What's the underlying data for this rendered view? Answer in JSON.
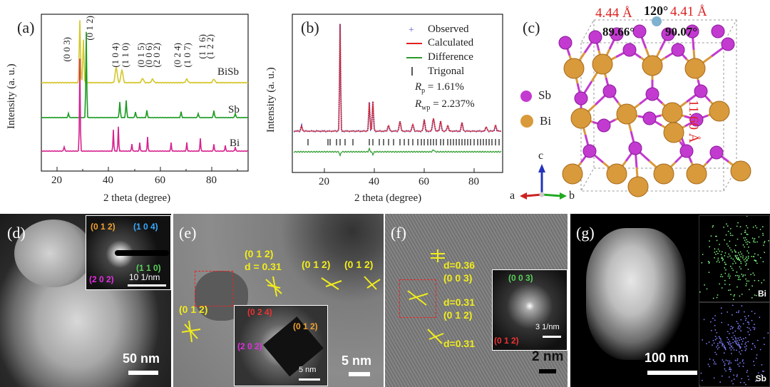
{
  "panel_a": {
    "label": "(a)",
    "ylabel": "Intensity (a. u.)",
    "xlabel": "2 theta (degree)",
    "xticks": [
      "20",
      "40",
      "60",
      "80"
    ],
    "series_labels": [
      "BiSb",
      "Sb",
      "Bi"
    ],
    "millers": [
      "(0 0 3)",
      "(0 1 2)",
      "(1 0 4)",
      "(1 1 0)",
      "(0 1 5)",
      "(0 0 6)",
      "(2 0 2)",
      "(0 2 4)",
      "(1 0 7)",
      "(1 1 6)",
      "(1 2 2)"
    ],
    "colors": {
      "BiSb": "#d4c62a",
      "Sb": "#1c9b22",
      "Bi": "#d6228f"
    }
  },
  "panel_b": {
    "label": "(b)",
    "ylabel": "Intensity (a. u.)",
    "xlabel": "2 theta (degree)",
    "xticks": [
      "20",
      "40",
      "60",
      "80"
    ],
    "legend": [
      "Observed",
      "Calculated",
      "Difference",
      "Trigonal"
    ],
    "rp_label": "R",
    "rp_sub": "p",
    "rp_value": "= 1.61%",
    "rwp_label": "R",
    "rwp_sub": "wp",
    "rwp_value": "= 2.237%",
    "colors": {
      "observed": "#5a5acb",
      "calculated": "#e02020",
      "difference": "#2a9a2a",
      "trigonal": "#111111"
    }
  },
  "panel_c": {
    "label": "(c)",
    "len_a": "4.44 Å",
    "len_b": "4.41 Å",
    "angle_gamma": "120°",
    "angle_alpha": "89.66°",
    "angle_beta": "90.07°",
    "len_c": "11.60 Å",
    "legend": [
      "Sb",
      "Bi"
    ],
    "axes": [
      "c",
      "a",
      "b"
    ],
    "colors": {
      "Sb": "#c33ad0",
      "Bi": "#d99a3c"
    }
  },
  "panel_d": {
    "label": "(d)",
    "scalebar": "50 nm",
    "inset_millers": [
      "(0 1 2)",
      "(1 0 4)",
      "(1 1 0)",
      "(2 0 2)"
    ],
    "inset_scale": "10 1/nm"
  },
  "panel_e": {
    "label": "(e)",
    "annotations": [
      "(0 1 2)",
      "d = 0.31",
      "(0 1 2)",
      "(0 1 2)",
      "(0 1 2)"
    ],
    "scalebar": "5 nm",
    "inset_millers": [
      "(0 2 4)",
      "(0 1 2)",
      "(2 0 2)"
    ],
    "inset_scale": "5 nm"
  },
  "panel_f": {
    "label": "(f)",
    "annotations": [
      "d=0.36",
      "(0 0 3)",
      "d=0.31",
      "(0 1 2)",
      "d=0.31"
    ],
    "scalebar": "2 nm",
    "inset_millers": [
      "(0 0 3)",
      "(0 1 2)"
    ],
    "inset_scale": "3 1/nm"
  },
  "panel_g": {
    "label": "(g)",
    "scalebar": "100 nm",
    "map_labels": [
      "Bi",
      "Sb"
    ]
  }
}
